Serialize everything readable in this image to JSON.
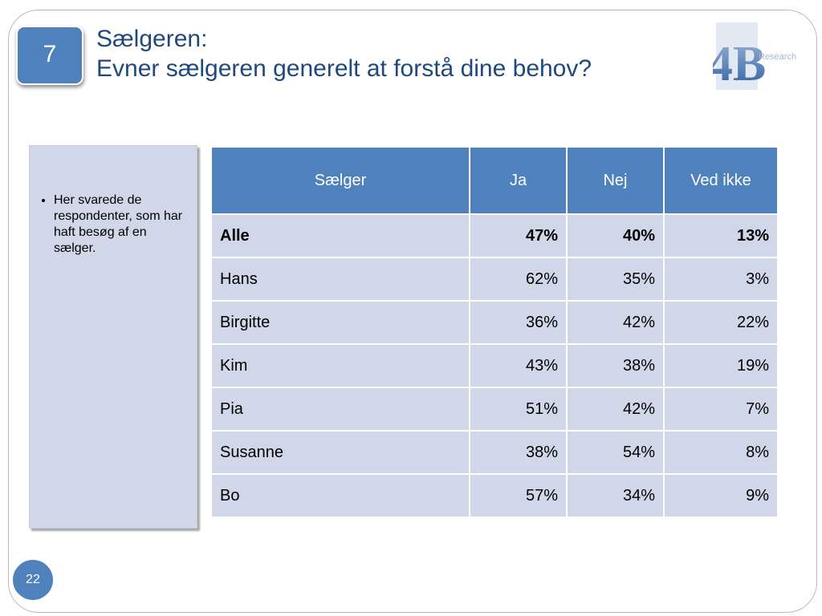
{
  "slide": {
    "badge_number": "7",
    "title_line1": "Sælgeren:",
    "title_line2": "Evner sælgeren generelt at forstå dine behov?",
    "page_number": "22"
  },
  "logo": {
    "mark": "4B",
    "word": "Research",
    "color": "#4f81bd"
  },
  "note": {
    "bullets": [
      "Her svarede de respondenter, som har haft besøg af en sælger."
    ]
  },
  "table": {
    "headers": [
      "Sælger",
      "Ja",
      "Nej",
      "Ved ikke"
    ],
    "rows": [
      [
        "Alle",
        "47%",
        "40%",
        "13%"
      ],
      [
        "Hans",
        "62%",
        "35%",
        "3%"
      ],
      [
        "Birgitte",
        "36%",
        "42%",
        "22%"
      ],
      [
        "Kim",
        "43%",
        "38%",
        "19%"
      ],
      [
        "Pia",
        "51%",
        "42%",
        "7%"
      ],
      [
        "Susanne",
        "38%",
        "54%",
        "8%"
      ],
      [
        "Bo",
        "57%",
        "34%",
        "9%"
      ]
    ]
  },
  "colors": {
    "accent": "#4f81bd",
    "title": "#1f497d",
    "table_row": "#d0d7e8"
  }
}
